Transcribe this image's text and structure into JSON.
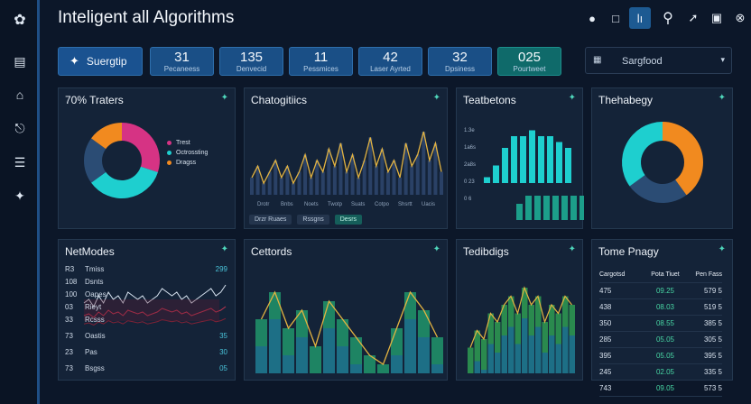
{
  "app": {
    "title": "Inteligent all Algorithms"
  },
  "sidebar": {
    "icons": [
      "logo-icon",
      "chart-icon",
      "home-icon",
      "clipboard-icon",
      "list-icon",
      "bird-icon"
    ]
  },
  "header": {
    "buttons": [
      "user-icon",
      "chat-icon",
      "grid-icon",
      "search-icon",
      "pin-icon",
      "camera-icon",
      "close-icon"
    ],
    "active_button_text": "lı"
  },
  "kpis": {
    "first_label": "Suergtip",
    "items": [
      {
        "value": "31",
        "label": "Pecaneess"
      },
      {
        "value": "135",
        "label": "Denvecid"
      },
      {
        "value": "11",
        "label": "Pessmices"
      },
      {
        "value": "42",
        "label": "Laser Ayrted"
      },
      {
        "value": "32",
        "label": "Dpsiness"
      },
      {
        "value": "025",
        "label": "Pourtweet"
      }
    ]
  },
  "select": {
    "value": "Sargfood"
  },
  "panels": {
    "p1": {
      "title": "70% Traters",
      "legend": [
        "Trest",
        "Octrossting",
        "Dragss"
      ],
      "colors": [
        "#d63384",
        "#1ecfcf",
        "#f18a1f",
        "#2b4c74"
      ]
    },
    "p2": {
      "title": "Chatogitiics",
      "ticks": [
        "Drotr",
        "Bnbs",
        "Noets",
        "Twotp",
        "Suats",
        "Cotpo",
        "Shsrtt",
        "Uacis"
      ],
      "chips": [
        "Drzr Ruaes",
        "Rssgns",
        "Desrs"
      ]
    },
    "p3": {
      "title": "Teatbetons",
      "ylabels": [
        "1.3e",
        "1a6s",
        "2a8s",
        "0 23",
        "0 6"
      ]
    },
    "p4": {
      "title": "Thehabegy"
    },
    "p5": {
      "title": "NetModes",
      "rows": [
        {
          "k": "R3",
          "n": "Tmiss",
          "v": "299"
        },
        {
          "k": "108",
          "n": "Dsnts",
          "v": ""
        },
        {
          "k": "100",
          "n": "Oapes",
          "v": ""
        },
        {
          "k": "03",
          "n": "Rieyt",
          "v": ""
        },
        {
          "k": "33",
          "n": "Rcsss",
          "v": ""
        },
        {
          "k": "73",
          "n": "Oastis",
          "v": "35"
        },
        {
          "k": "23",
          "n": "Pas",
          "v": "30"
        },
        {
          "k": "73",
          "n": "Bsgss",
          "v": "05"
        }
      ]
    },
    "p6": {
      "title": "Cettords"
    },
    "p7": {
      "title": "Tedibdigs"
    },
    "p8": {
      "title": "Tome Pnagy",
      "headers": [
        "Cargotsd",
        "Pota Tiuet",
        "Pen Fass"
      ],
      "rows": [
        [
          "475",
          "09.25",
          "579 5"
        ],
        [
          "438",
          "08.03",
          "519 5"
        ],
        [
          "350",
          "08.55",
          "385 5"
        ],
        [
          "285",
          "05.05",
          "305 5"
        ],
        [
          "395",
          "05.05",
          "395 5"
        ],
        [
          "245",
          "02.05",
          "335 5"
        ],
        [
          "743",
          "09.05",
          "573 5"
        ]
      ]
    }
  },
  "chart_data": [
    {
      "type": "pie",
      "values": [
        30,
        35,
        20,
        15
      ],
      "colors": [
        "#d63384",
        "#1ecfcf",
        "#2b4c74",
        "#f18a1f"
      ]
    },
    {
      "type": "area",
      "values": [
        3,
        5,
        2,
        4,
        6,
        3,
        5,
        2,
        4,
        7,
        3,
        6,
        4,
        8,
        5,
        9,
        4,
        7,
        3,
        6,
        10,
        5,
        8,
        4,
        6,
        3,
        9,
        5,
        7,
        11,
        6,
        9,
        4
      ]
    },
    {
      "type": "bar",
      "values": [
        1,
        3,
        6,
        8,
        8,
        9,
        8,
        8,
        7,
        6
      ],
      "values2": [
        0,
        2,
        3,
        3,
        3,
        3,
        3,
        3,
        3,
        2
      ]
    },
    {
      "type": "pie",
      "values": [
        40,
        25,
        35
      ],
      "colors": [
        "#f18a1f",
        "#2b4c74",
        "#1ecfcf"
      ]
    },
    {
      "type": "line",
      "values": [
        4,
        5,
        3,
        6,
        4,
        7,
        5,
        6,
        4,
        7,
        6,
        5,
        6,
        4,
        5,
        6,
        8,
        7,
        6,
        7,
        5,
        6,
        4,
        5,
        6,
        7,
        8,
        6,
        7,
        9
      ]
    },
    {
      "type": "bar",
      "values": [
        6,
        9,
        5,
        7,
        3,
        8,
        6,
        4,
        2,
        1,
        5,
        9,
        7,
        4
      ]
    },
    {
      "type": "bar",
      "values": [
        3,
        5,
        4,
        7,
        6,
        8,
        9,
        7,
        10,
        8,
        9,
        6,
        8,
        7,
        9,
        8
      ]
    }
  ]
}
